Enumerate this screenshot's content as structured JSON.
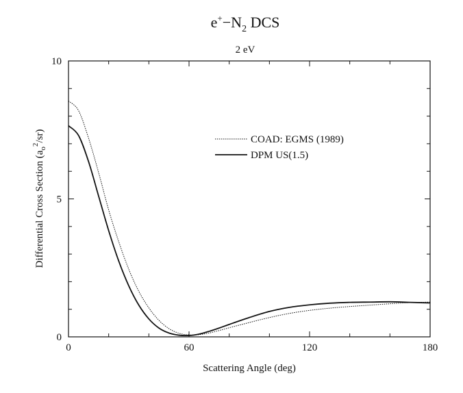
{
  "chart_data": {
    "type": "line",
    "title": {
      "prefix": "e",
      "sup": "+",
      "dash": "−",
      "mol": "N",
      "sub": "2",
      "rest": " DCS"
    },
    "subtitle": "2 eV",
    "xlabel": "Scattering Angle (deg)",
    "ylabel": {
      "pre": "Differential Cross Section (a",
      "sub": "o",
      "sup": "2",
      "post": "/sr)"
    },
    "xlim": [
      0,
      180
    ],
    "ylim": [
      0,
      10
    ],
    "xticks": [
      "0",
      "60",
      "120",
      "180"
    ],
    "yticks": [
      "0",
      "5",
      "10"
    ],
    "legend_position": "upper-right",
    "series": [
      {
        "name": "COAD: EGMS (1989)",
        "style": "dotted",
        "x": [
          0,
          5,
          10,
          15,
          20,
          25,
          30,
          35,
          40,
          45,
          50,
          55,
          60,
          65,
          70,
          75,
          80,
          90,
          100,
          110,
          120,
          130,
          140,
          150,
          160,
          170,
          180
        ],
        "y": [
          8.55,
          8.2,
          7.2,
          5.95,
          4.6,
          3.45,
          2.45,
          1.65,
          1.05,
          0.6,
          0.3,
          0.13,
          0.07,
          0.08,
          0.14,
          0.23,
          0.33,
          0.52,
          0.7,
          0.85,
          0.96,
          1.04,
          1.1,
          1.15,
          1.2,
          1.24,
          1.26
        ]
      },
      {
        "name": "DPM US(1.5)",
        "style": "solid",
        "x": [
          0,
          5,
          10,
          15,
          20,
          25,
          30,
          35,
          40,
          45,
          50,
          55,
          60,
          65,
          70,
          75,
          80,
          90,
          100,
          110,
          120,
          130,
          140,
          150,
          160,
          170,
          180
        ],
        "y": [
          7.65,
          7.3,
          6.35,
          5.1,
          3.85,
          2.75,
          1.85,
          1.15,
          0.65,
          0.32,
          0.14,
          0.06,
          0.05,
          0.1,
          0.2,
          0.32,
          0.45,
          0.7,
          0.92,
          1.07,
          1.16,
          1.22,
          1.25,
          1.26,
          1.27,
          1.25,
          1.23
        ]
      }
    ]
  }
}
